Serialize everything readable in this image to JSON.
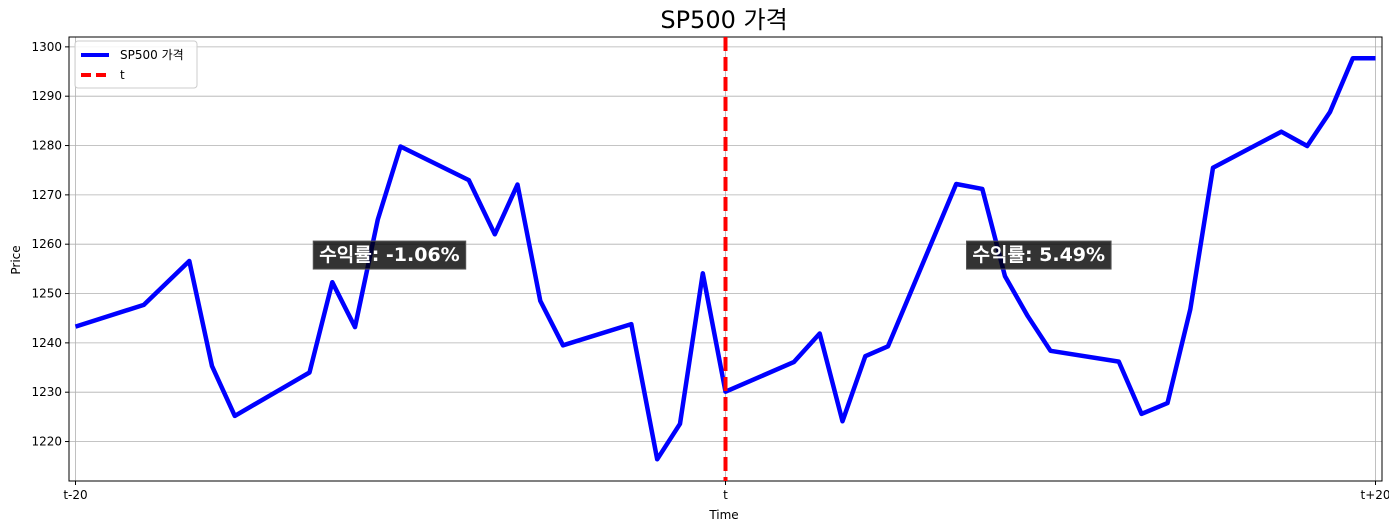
{
  "chart_data": {
    "type": "line",
    "title": "SP500 가격",
    "xlabel": "Time",
    "ylabel": "Price",
    "xlim": [
      -20.2,
      20.2
    ],
    "ylim": [
      1212,
      1302
    ],
    "grid": true,
    "legend_position": "top-left",
    "x_ticks": [
      {
        "x": -20,
        "label": "t-20"
      },
      {
        "x": 0,
        "label": "t"
      },
      {
        "x": 20,
        "label": "t+20"
      }
    ],
    "y_ticks": [
      1220,
      1230,
      1240,
      1250,
      1260,
      1270,
      1280,
      1290,
      1300
    ],
    "series": [
      {
        "name": "SP500 가격",
        "color": "#0000ff",
        "points": [
          {
            "x": -20.0,
            "y": 1243.3
          },
          {
            "x": -17.9,
            "y": 1247.7
          },
          {
            "x": -16.5,
            "y": 1256.6
          },
          {
            "x": -15.8,
            "y": 1235.3
          },
          {
            "x": -15.1,
            "y": 1225.2
          },
          {
            "x": -12.8,
            "y": 1234.0
          },
          {
            "x": -12.1,
            "y": 1252.3
          },
          {
            "x": -11.4,
            "y": 1243.2
          },
          {
            "x": -10.7,
            "y": 1265.0
          },
          {
            "x": -10.0,
            "y": 1279.8
          },
          {
            "x": -7.9,
            "y": 1273.0
          },
          {
            "x": -7.1,
            "y": 1262.0
          },
          {
            "x": -6.4,
            "y": 1272.1
          },
          {
            "x": -5.7,
            "y": 1248.5
          },
          {
            "x": -5.0,
            "y": 1239.5
          },
          {
            "x": -2.9,
            "y": 1243.8
          },
          {
            "x": -2.1,
            "y": 1216.4
          },
          {
            "x": -1.4,
            "y": 1223.6
          },
          {
            "x": -0.7,
            "y": 1254.1
          },
          {
            "x": 0.0,
            "y": 1230.1
          },
          {
            "x": 2.1,
            "y": 1236.1
          },
          {
            "x": 2.9,
            "y": 1241.9
          },
          {
            "x": 3.6,
            "y": 1224.1
          },
          {
            "x": 4.3,
            "y": 1237.3
          },
          {
            "x": 5.0,
            "y": 1239.3
          },
          {
            "x": 7.1,
            "y": 1272.2
          },
          {
            "x": 7.9,
            "y": 1271.2
          },
          {
            "x": 8.6,
            "y": 1253.5
          },
          {
            "x": 9.3,
            "y": 1245.4
          },
          {
            "x": 10.0,
            "y": 1238.4
          },
          {
            "x": 12.1,
            "y": 1236.2
          },
          {
            "x": 12.8,
            "y": 1225.6
          },
          {
            "x": 13.6,
            "y": 1227.8
          },
          {
            "x": 14.3,
            "y": 1246.8
          },
          {
            "x": 15.0,
            "y": 1275.5
          },
          {
            "x": 17.1,
            "y": 1282.8
          },
          {
            "x": 17.9,
            "y": 1279.9
          },
          {
            "x": 18.6,
            "y": 1286.8
          },
          {
            "x": 19.3,
            "y": 1297.7
          },
          {
            "x": 20.0,
            "y": 1297.7
          }
        ]
      }
    ],
    "vline": {
      "x": 0,
      "name": "t",
      "color": "#ff0000",
      "style": "dashed"
    },
    "annotations": [
      {
        "text": "수익률: -1.06%",
        "x": -12.5,
        "y": 1258
      },
      {
        "text": "수익률: 5.49%",
        "x": 7.6,
        "y": 1258
      }
    ]
  }
}
